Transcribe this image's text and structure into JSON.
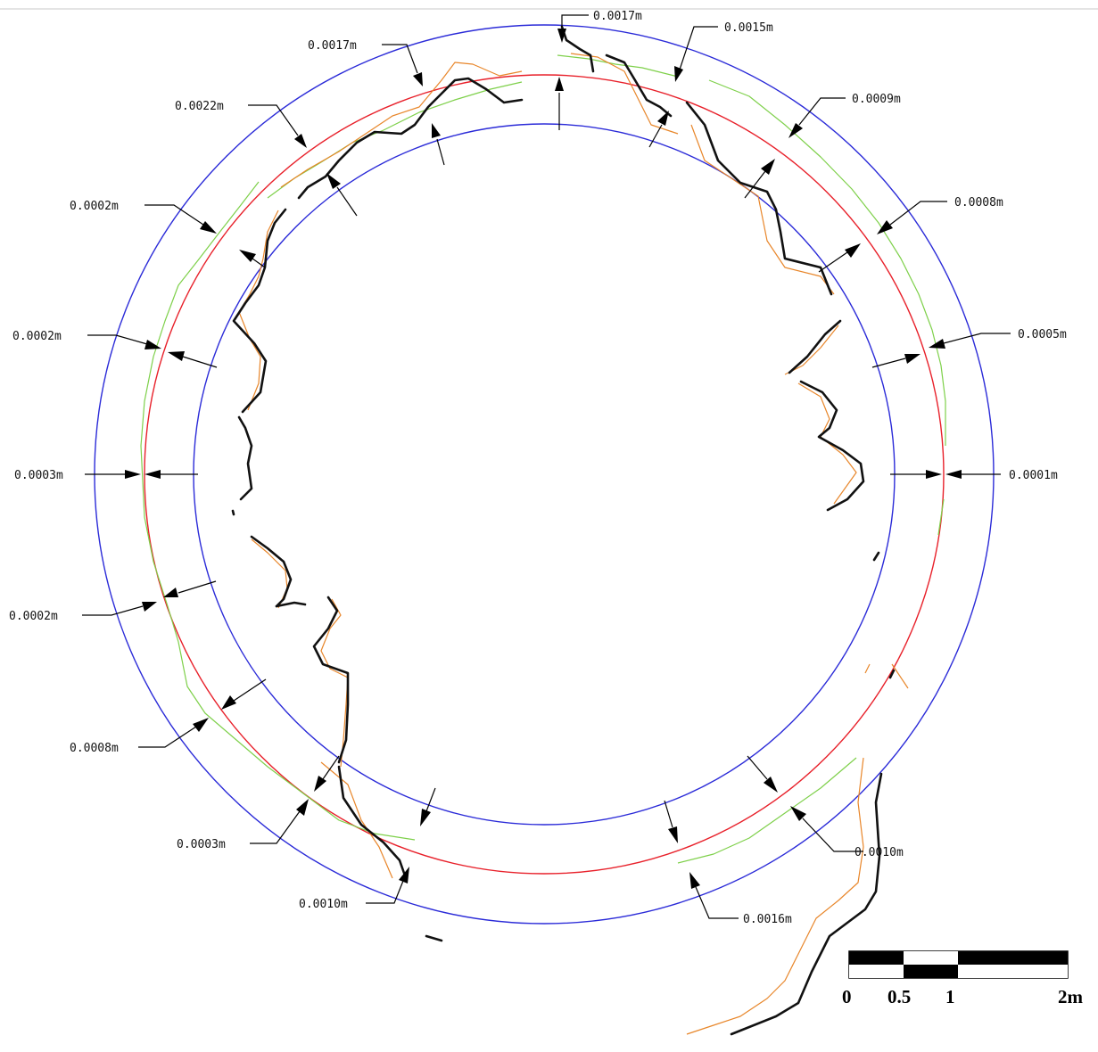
{
  "diagram": {
    "circles": [
      {
        "role": "outer-boundary",
        "color": "#2b2bd8"
      },
      {
        "role": "design-line",
        "color": "#e8202a"
      },
      {
        "role": "inner-boundary",
        "color": "#2b2bd8"
      }
    ],
    "profile_colors": {
      "black": "#111111",
      "orange": "#e8862a",
      "green": "#7ed04a"
    },
    "dimensions": [
      {
        "text": "0.0017m"
      },
      {
        "text": "0.0015m"
      },
      {
        "text": "0.0017m"
      },
      {
        "text": "0.0022m"
      },
      {
        "text": "0.0009m"
      },
      {
        "text": "0.0002m"
      },
      {
        "text": "0.0008m"
      },
      {
        "text": "0.0002m"
      },
      {
        "text": "0.0005m"
      },
      {
        "text": "0.0003m"
      },
      {
        "text": "0.0001m"
      },
      {
        "text": "0.0002m"
      },
      {
        "text": "0.0008m"
      },
      {
        "text": "0.0003m"
      },
      {
        "text": "0.0010m"
      },
      {
        "text": "0.0010m"
      },
      {
        "text": "0.0016m"
      }
    ],
    "scale_bar": {
      "labels": [
        "0",
        "0.5",
        "1",
        "2m"
      ],
      "pattern_colors": [
        "#000000",
        "#ffffff"
      ]
    }
  }
}
